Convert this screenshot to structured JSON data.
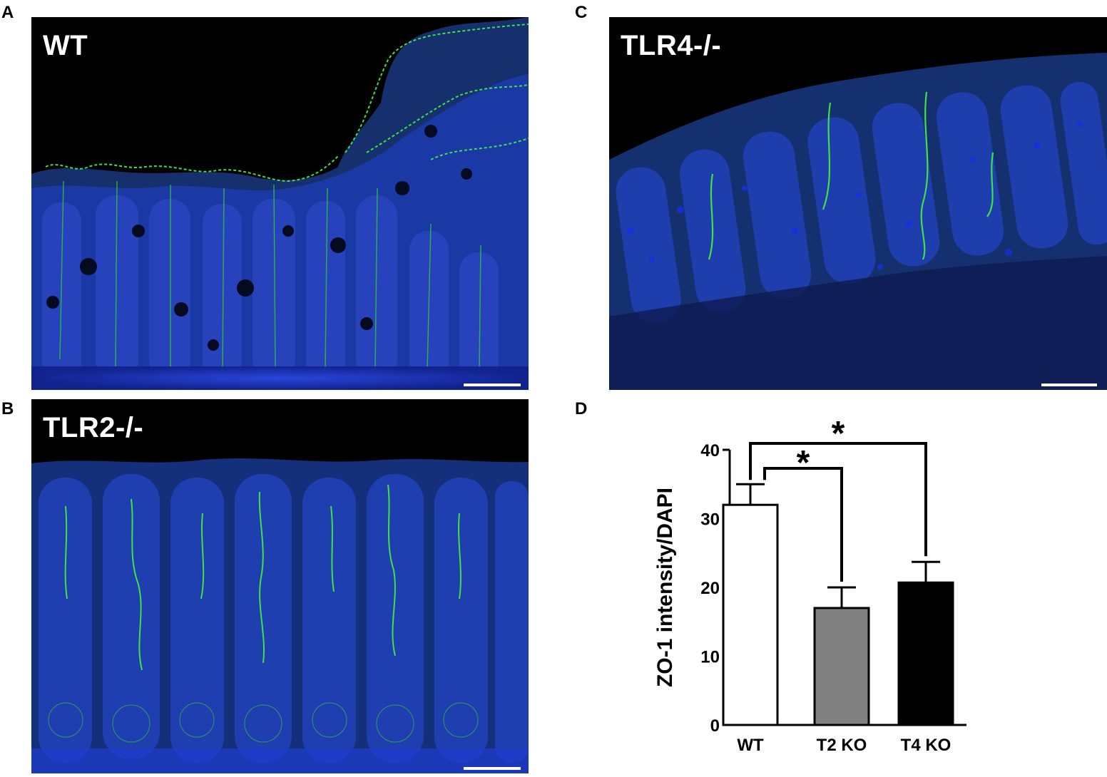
{
  "panels": {
    "a": {
      "letter": "A",
      "label": "WT"
    },
    "b": {
      "letter": "B",
      "label": "TLR2-/-"
    },
    "c": {
      "letter": "C",
      "label": "TLR4-/-"
    },
    "d": {
      "letter": "D"
    }
  },
  "colors": {
    "nuclei": "#1e3cd2",
    "zo1": "#37d23c",
    "background": "#000000"
  },
  "chart_data": {
    "type": "bar",
    "title": "",
    "xlabel": "",
    "ylabel": "ZO-1 intensity/DAPI",
    "categories": [
      "WT",
      "T2 KO",
      "T4 KO"
    ],
    "values": [
      32,
      17,
      20.7
    ],
    "errors": [
      3,
      3,
      3
    ],
    "bar_colors": [
      "#ffffff",
      "#808080",
      "#000000"
    ],
    "ylim": [
      0,
      40
    ],
    "yticks": [
      0,
      10,
      20,
      30,
      40
    ],
    "significance": [
      {
        "from": "WT",
        "to": "T2 KO",
        "label": "*"
      },
      {
        "from": "WT",
        "to": "T4 KO",
        "label": "*"
      }
    ],
    "grid": false,
    "legend": "none"
  }
}
